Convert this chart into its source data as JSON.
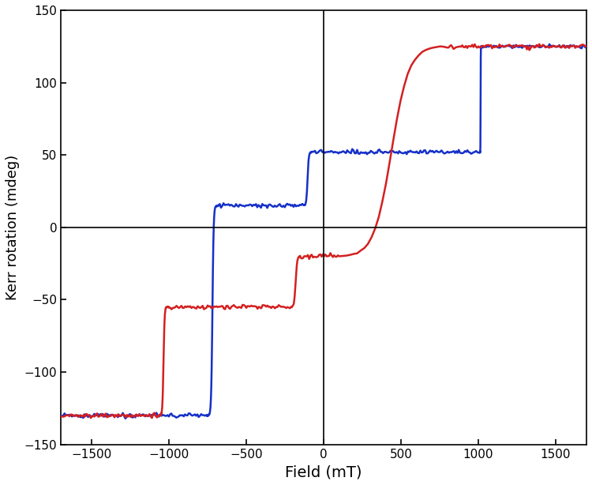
{
  "title": "",
  "xlabel": "Field (mT)",
  "ylabel": "Kerr rotation (mdeg)",
  "xlim": [
    -1700,
    1700
  ],
  "ylim": [
    -150,
    150
  ],
  "xticks": [
    -1500,
    -1000,
    -500,
    0,
    500,
    1000,
    1500
  ],
  "yticks": [
    -150,
    -100,
    -50,
    0,
    50,
    100,
    150
  ],
  "axvline_x": 0,
  "axhline_y": 0,
  "red_color": "#d42020",
  "blue_color": "#1530c8",
  "linewidth": 1.8,
  "noise_std": 0.7,
  "blue_keypoints": [
    [
      1700,
      125
    ],
    [
      1020,
      125
    ],
    [
      1010,
      52
    ],
    [
      -80,
      52
    ],
    [
      -130,
      15
    ],
    [
      -680,
      15
    ],
    [
      -760,
      -130
    ],
    [
      -1700,
      -130
    ]
  ],
  "red_keypoints": [
    [
      -1700,
      -130
    ],
    [
      -1070,
      -130
    ],
    [
      -1000,
      -55
    ],
    [
      -210,
      -55
    ],
    [
      -150,
      -20
    ],
    [
      100,
      -20
    ],
    [
      800,
      125
    ],
    [
      1700,
      125
    ]
  ]
}
